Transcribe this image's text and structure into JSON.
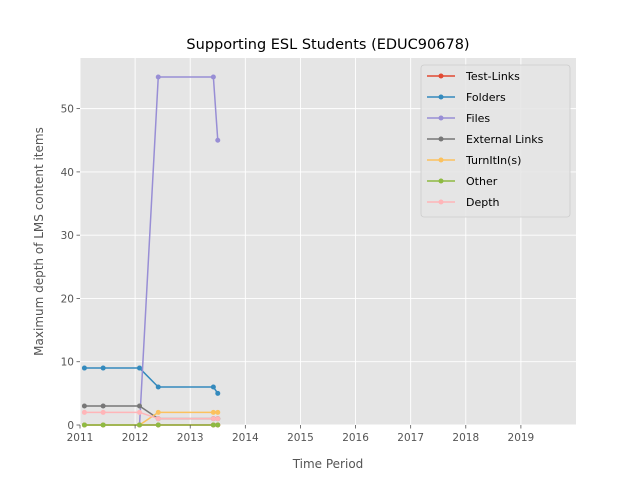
{
  "chart_data": {
    "type": "line",
    "title": "Supporting ESL Students (EDUC90678)",
    "xlabel": "Time Period",
    "ylabel": "Maximum depth of LMS content items",
    "xlim": [
      2011,
      2020
    ],
    "ylim": [
      0,
      58
    ],
    "xticks": [
      "2011",
      "2012",
      "2013",
      "2014",
      "2015",
      "2016",
      "2017",
      "2018",
      "2019"
    ],
    "yticks": [
      "0",
      "10",
      "20",
      "30",
      "40",
      "50"
    ],
    "grid": true,
    "legend_position": "top-right",
    "x": [
      2011.08,
      2011.42,
      2012.08,
      2012.42,
      2013.42,
      2013.5
    ],
    "series": [
      {
        "name": "Test-Links",
        "color": "#e24a33",
        "values": [
          0,
          0,
          0,
          0,
          0,
          0
        ]
      },
      {
        "name": "Folders",
        "color": "#348abd",
        "values": [
          9,
          9,
          9,
          6,
          6,
          5
        ]
      },
      {
        "name": "Files",
        "color": "#988ed5",
        "values": [
          0,
          0,
          0,
          55,
          55,
          45
        ]
      },
      {
        "name": "External Links",
        "color": "#777777",
        "values": [
          3,
          3,
          3,
          1,
          1,
          1
        ]
      },
      {
        "name": "TurnItIn(s)",
        "color": "#fbc15e",
        "values": [
          0,
          0,
          0,
          2,
          2,
          2
        ]
      },
      {
        "name": "Other",
        "color": "#8eba42",
        "values": [
          0,
          0,
          0,
          0,
          0,
          0
        ]
      },
      {
        "name": "Depth",
        "color": "#ffb5b8",
        "values": [
          2,
          2,
          2,
          1,
          1,
          1
        ]
      }
    ]
  }
}
